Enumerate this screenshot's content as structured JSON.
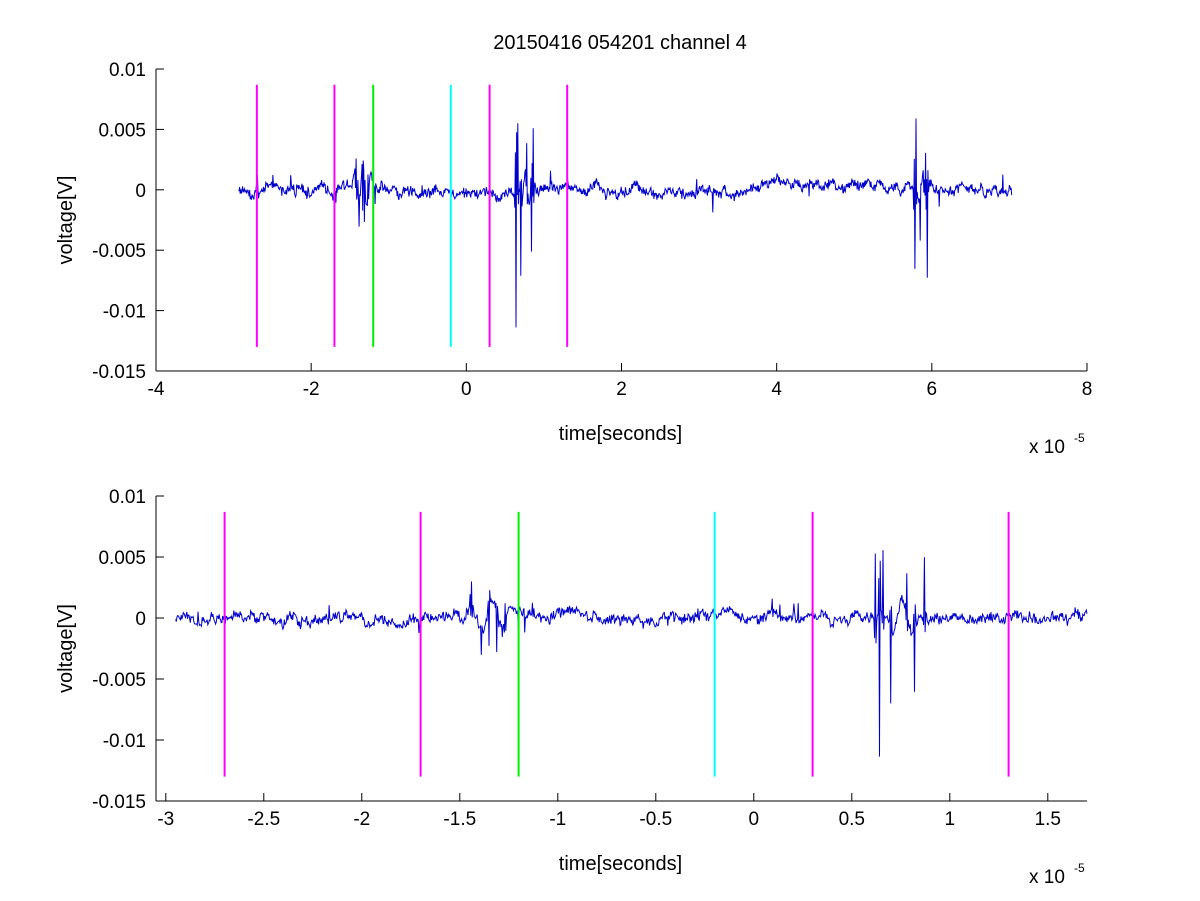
{
  "figure_title": "20150416 054201 channel 4",
  "colors": {
    "signal": "#0000cc",
    "marker_magenta": "#ff00ff",
    "marker_green": "#00ee00",
    "marker_cyan": "#00ffff",
    "axis": "#000000",
    "background": "#ffffff"
  },
  "chart_data": [
    {
      "type": "line",
      "title": "20150416 054201 channel 4",
      "xlabel": "time[seconds]",
      "ylabel": "voltage[V]",
      "x_exponent": "x 10",
      "x_exponent_power": "-5",
      "xlim": [
        -4,
        8
      ],
      "ylim": [
        -0.015,
        0.01
      ],
      "xticks": [
        -4,
        -2,
        0,
        2,
        4,
        6,
        8
      ],
      "xtick_labels": [
        "-4",
        "-2",
        "0",
        "2",
        "4",
        "6",
        "8"
      ],
      "yticks": [
        0.01,
        0.005,
        0,
        -0.005,
        -0.01,
        -0.015
      ],
      "ytick_labels": [
        "0.01",
        "0.005",
        "0",
        "-0.005",
        "-0.01",
        "-0.015"
      ],
      "grid": false,
      "signal_range": [
        -2.93,
        7.03
      ],
      "bursts": [
        {
          "center": -1.35,
          "peaks": [
            [
              -1.42,
              0.0022
            ],
            [
              -1.38,
              -0.0018
            ],
            [
              -1.34,
              -0.0032
            ],
            [
              -1.31,
              -0.003
            ],
            [
              -1.27,
              0.0018
            ]
          ]
        },
        {
          "center": 0.75,
          "peaks": [
            [
              0.63,
              0.0055
            ],
            [
              0.64,
              -0.0118
            ],
            [
              0.66,
              0.0048
            ],
            [
              0.7,
              -0.006
            ],
            [
              0.78,
              0.0033
            ],
            [
              0.84,
              -0.0052
            ],
            [
              0.86,
              0.0045
            ]
          ]
        },
        {
          "center": 5.85,
          "peaks": [
            [
              5.77,
              0.0078
            ],
            [
              5.78,
              -0.0075
            ],
            [
              5.8,
              0.005
            ],
            [
              5.85,
              -0.003
            ],
            [
              5.92,
              0.0032
            ],
            [
              5.94,
              -0.0065
            ]
          ]
        }
      ],
      "markers": [
        {
          "x": -2.7,
          "color": "magenta"
        },
        {
          "x": -1.7,
          "color": "magenta"
        },
        {
          "x": -1.2,
          "color": "green"
        },
        {
          "x": -0.2,
          "color": "cyan"
        },
        {
          "x": 0.3,
          "color": "magenta"
        },
        {
          "x": 1.3,
          "color": "magenta"
        }
      ],
      "marker_ylim": [
        -0.013,
        0.0087
      ]
    },
    {
      "type": "line",
      "title": "",
      "xlabel": "time[seconds]",
      "ylabel": "voltage[V]",
      "x_exponent": "x 10",
      "x_exponent_power": "-5",
      "xlim": [
        -3.05,
        1.7
      ],
      "ylim": [
        -0.015,
        0.01
      ],
      "xticks": [
        -3,
        -2.5,
        -2,
        -1.5,
        -1,
        -0.5,
        0,
        0.5,
        1,
        1.5
      ],
      "xtick_labels": [
        "-3",
        "-2.5",
        "-2",
        "-1.5",
        "-1",
        "-0.5",
        "0",
        "0.5",
        "1",
        "1.5"
      ],
      "yticks": [
        0.01,
        0.005,
        0,
        -0.005,
        -0.01,
        -0.015
      ],
      "ytick_labels": [
        "0.01",
        "0.005",
        "0",
        "-0.005",
        "-0.01",
        "-0.015"
      ],
      "grid": false,
      "signal_range": [
        -2.95,
        1.7
      ],
      "bursts": [
        {
          "center": -1.35,
          "peaks": [
            [
              -1.44,
              0.0022
            ],
            [
              -1.39,
              -0.0018
            ],
            [
              -1.35,
              -0.0032
            ],
            [
              -1.31,
              -0.003
            ],
            [
              -1.27,
              0.0018
            ]
          ]
        },
        {
          "center": 0.75,
          "peaks": [
            [
              0.62,
              0.0055
            ],
            [
              0.64,
              -0.0118
            ],
            [
              0.66,
              0.0048
            ],
            [
              0.7,
              -0.006
            ],
            [
              0.78,
              0.0033
            ],
            [
              0.82,
              -0.0052
            ],
            [
              0.87,
              0.0045
            ]
          ]
        }
      ],
      "markers": [
        {
          "x": -2.7,
          "color": "magenta"
        },
        {
          "x": -1.7,
          "color": "magenta"
        },
        {
          "x": -1.2,
          "color": "green"
        },
        {
          "x": -0.2,
          "color": "cyan"
        },
        {
          "x": 0.3,
          "color": "magenta"
        },
        {
          "x": 1.3,
          "color": "magenta"
        }
      ],
      "marker_ylim": [
        -0.013,
        0.0087
      ]
    }
  ]
}
